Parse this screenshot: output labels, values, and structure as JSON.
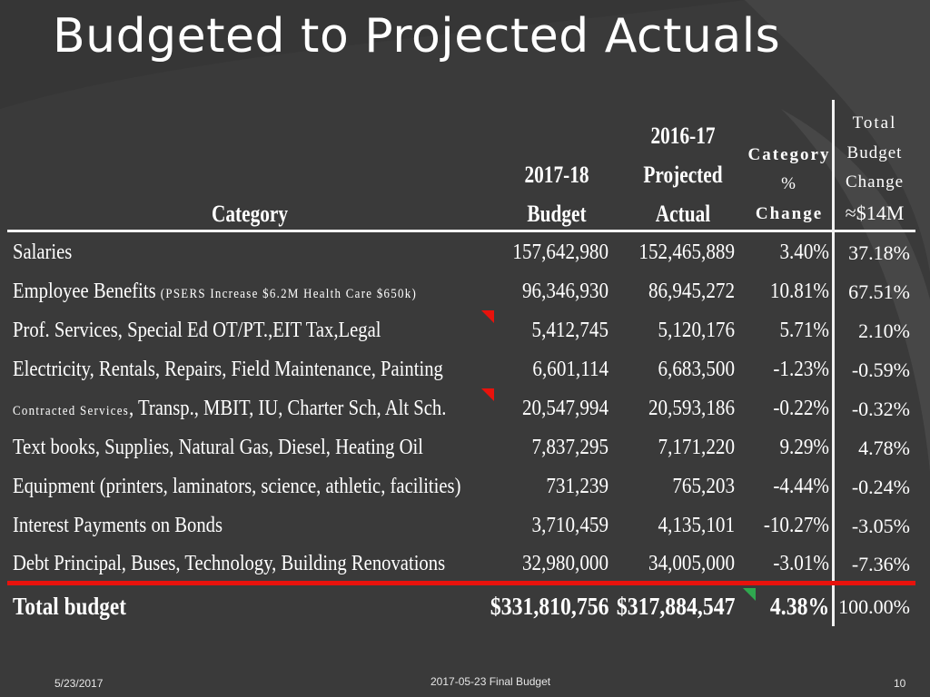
{
  "slide": {
    "title": "Budgeted to Projected Actuals",
    "footer_date": "5/23/2017",
    "footer_center": "2017-05-23 Final Budget",
    "page_number": "10"
  },
  "table": {
    "headers": {
      "category": "Category",
      "budget_line1": "2017-18",
      "budget_line2": "Budget",
      "actual_line1": "2016-17",
      "actual_line2": "Projected",
      "actual_line3": "Actual",
      "pct_line1": "Category",
      "pct_line2": "%",
      "pct_line3": "Change",
      "total_line1": "Total",
      "total_line2": "Budget",
      "total_line3": "Change",
      "total_line4": "≈$14M"
    },
    "rows": [
      {
        "category": "Salaries",
        "category_note": "",
        "category_prefix": "",
        "budget": "157,642,980",
        "actual": "152,465,889",
        "pct": "3.40%",
        "total": "37.18%"
      },
      {
        "category": "Employee Benefits ",
        "category_note": "(PSERS Increase $6.2M  Health Care $650k)",
        "category_prefix": "",
        "budget": "96,346,930",
        "actual": "86,945,272",
        "pct": "10.81%",
        "total": "67.51%"
      },
      {
        "category": "Prof. Services, Special Ed OT/PT.,EIT Tax,Legal",
        "category_note": "",
        "category_prefix": "",
        "budget": "5,412,745",
        "actual": "5,120,176",
        "pct": "5.71%",
        "total": "2.10%"
      },
      {
        "category": "Electricity, Rentals, Repairs, Field Maintenance, Painting",
        "category_note": "",
        "category_prefix": "",
        "budget": "6,601,114",
        "actual": "6,683,500",
        "pct": "-1.23%",
        "total": "-0.59%"
      },
      {
        "category": ", Transp., MBIT, IU, Charter Sch, Alt Sch.",
        "category_note": "",
        "category_prefix": "Contracted Services",
        "budget": "20,547,994",
        "actual": "20,593,186",
        "pct": "-0.22%",
        "total": "-0.32%"
      },
      {
        "category": "Text books, Supplies, Natural Gas, Diesel, Heating Oil",
        "category_note": "",
        "category_prefix": "",
        "budget": "7,837,295",
        "actual": "7,171,220",
        "pct": "9.29%",
        "total": "4.78%"
      },
      {
        "category": "Equipment (printers, laminators, science, athletic, facilities)",
        "category_note": "",
        "category_prefix": "",
        "budget": "731,239",
        "actual": "765,203",
        "pct": "-4.44%",
        "total": "-0.24%"
      },
      {
        "category": "Interest Payments on Bonds",
        "category_note": "",
        "category_prefix": "",
        "budget": "3,710,459",
        "actual": "4,135,101",
        "pct": "-10.27%",
        "total": "-3.05%"
      },
      {
        "category": "Debt Principal, Buses, Technology, Building Renovations",
        "category_note": "",
        "category_prefix": "",
        "budget": "32,980,000",
        "actual": "34,005,000",
        "pct": "-3.01%",
        "total": "-7.36%"
      }
    ],
    "total": {
      "category": "Total budget",
      "budget": "$331,810,756",
      "actual": "$317,884,547",
      "pct": "4.38%",
      "total": "100.00%"
    }
  },
  "colors": {
    "background": "#3a3a3a",
    "highlight_line": "#e8120c",
    "comment_flag": "#e8120c",
    "comment_flag_green": "#2fa84f"
  }
}
